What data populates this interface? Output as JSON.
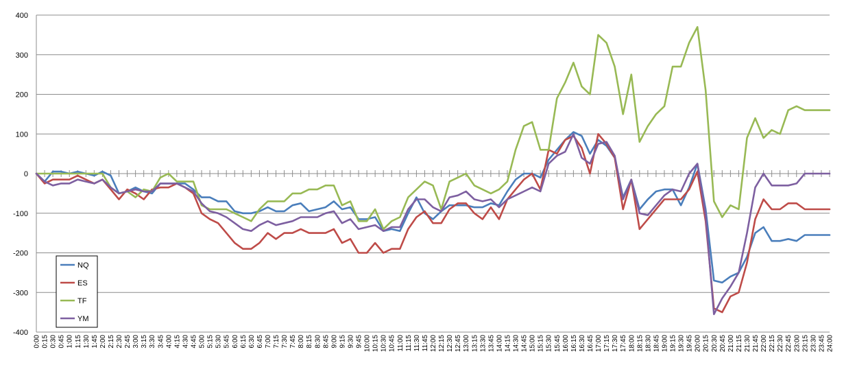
{
  "chart_data": {
    "type": "line",
    "title": "",
    "xlabel": "",
    "ylabel": "",
    "ylim": [
      -400,
      400
    ],
    "yticks": [
      -400,
      -300,
      -200,
      -100,
      0,
      100,
      200,
      300,
      400
    ],
    "grid": true,
    "legend_position": "bottom-left",
    "x": [
      "0:00",
      "0:15",
      "0:30",
      "0:45",
      "1:00",
      "1:15",
      "1:30",
      "1:45",
      "2:00",
      "2:15",
      "2:30",
      "2:45",
      "3:00",
      "3:15",
      "3:30",
      "3:45",
      "4:00",
      "4:15",
      "4:30",
      "4:45",
      "5:00",
      "5:15",
      "5:30",
      "5:45",
      "6:00",
      "6:15",
      "6:30",
      "6:45",
      "7:00",
      "7:15",
      "7:30",
      "7:45",
      "8:00",
      "8:15",
      "8:30",
      "8:45",
      "9:00",
      "9:15",
      "9:30",
      "9:45",
      "10:00",
      "10:15",
      "10:30",
      "10:45",
      "11:00",
      "11:15",
      "11:30",
      "11:45",
      "12:00",
      "12:15",
      "12:30",
      "12:45",
      "13:00",
      "13:15",
      "13:30",
      "13:45",
      "14:00",
      "14:15",
      "14:30",
      "14:45",
      "15:00",
      "15:15",
      "15:30",
      "15:45",
      "16:00",
      "16:15",
      "16:30",
      "16:45",
      "17:00",
      "17:15",
      "17:30",
      "17:45",
      "18:00",
      "18:15",
      "18:30",
      "18:45",
      "19:00",
      "19:15",
      "19:30",
      "19:45",
      "20:00",
      "20:15",
      "20:30",
      "20:45",
      "21:00",
      "21:15",
      "21:30",
      "21:45",
      "22:00",
      "22:15",
      "22:30",
      "22:45",
      "23:00",
      "23:15",
      "23:30",
      "23:45",
      "24:00"
    ],
    "series": [
      {
        "name": "NQ",
        "color": "#4A7EBB",
        "values": [
          0,
          -20,
          5,
          5,
          0,
          5,
          0,
          -5,
          5,
          -5,
          -50,
          -45,
          -35,
          -45,
          -50,
          -25,
          -25,
          -25,
          -25,
          -40,
          -60,
          -60,
          -70,
          -70,
          -95,
          -100,
          -100,
          -95,
          -85,
          -95,
          -95,
          -80,
          -75,
          -95,
          -90,
          -85,
          -70,
          -90,
          -85,
          -115,
          -115,
          -110,
          -145,
          -140,
          -145,
          -100,
          -60,
          -100,
          -115,
          -95,
          -80,
          -80,
          -80,
          -85,
          -85,
          -75,
          -80,
          -45,
          -15,
          0,
          0,
          -10,
          35,
          60,
          85,
          105,
          95,
          50,
          85,
          70,
          40,
          -60,
          -15,
          -90,
          -65,
          -45,
          -40,
          -40,
          -80,
          -35,
          25,
          -90,
          -270,
          -275,
          -260,
          -250,
          -210,
          -150,
          -135,
          -170,
          -170,
          -165,
          -170,
          -155,
          -155,
          -155,
          -155
        ]
      },
      {
        "name": "ES",
        "color": "#BE4B48",
        "values": [
          0,
          -25,
          -15,
          -15,
          -15,
          -5,
          -15,
          -25,
          -15,
          -40,
          -65,
          -40,
          -50,
          -65,
          -40,
          -35,
          -35,
          -25,
          -35,
          -50,
          -100,
          -115,
          -125,
          -150,
          -175,
          -190,
          -190,
          -175,
          -150,
          -165,
          -150,
          -150,
          -140,
          -150,
          -150,
          -150,
          -140,
          -175,
          -165,
          -200,
          -200,
          -175,
          -200,
          -190,
          -190,
          -140,
          -110,
          -95,
          -125,
          -125,
          -90,
          -75,
          -75,
          -100,
          -115,
          -85,
          -115,
          -65,
          -40,
          -15,
          0,
          -40,
          60,
          50,
          85,
          95,
          65,
          0,
          100,
          75,
          40,
          -90,
          -15,
          -140,
          -115,
          -90,
          -65,
          -65,
          -65,
          -40,
          5,
          -120,
          -340,
          -350,
          -310,
          -300,
          -225,
          -115,
          -65,
          -90,
          -90,
          -75,
          -75,
          -90,
          -90,
          -90,
          -90
        ]
      },
      {
        "name": "TF",
        "color": "#98B954",
        "values": [
          0,
          0,
          0,
          0,
          0,
          0,
          0,
          0,
          0,
          -35,
          -50,
          -45,
          -60,
          -40,
          -45,
          -10,
          0,
          -20,
          -20,
          -20,
          -80,
          -90,
          -90,
          -90,
          -100,
          -110,
          -120,
          -90,
          -70,
          -70,
          -70,
          -50,
          -50,
          -40,
          -40,
          -30,
          -30,
          -80,
          -70,
          -120,
          -120,
          -90,
          -140,
          -120,
          -110,
          -60,
          -40,
          -20,
          -30,
          -90,
          -20,
          -10,
          0,
          -30,
          -40,
          -50,
          -40,
          -20,
          60,
          120,
          130,
          60,
          60,
          190,
          230,
          280,
          220,
          200,
          350,
          330,
          270,
          150,
          250,
          80,
          120,
          150,
          170,
          270,
          270,
          330,
          370,
          210,
          -70,
          -110,
          -80,
          -90,
          90,
          140,
          90,
          110,
          100,
          160,
          170,
          160,
          160,
          160,
          160
        ]
      },
      {
        "name": "YM",
        "color": "#7D5FA0",
        "values": [
          0,
          -20,
          -30,
          -25,
          -25,
          -15,
          -20,
          -25,
          -15,
          -35,
          -50,
          -45,
          -40,
          -45,
          -45,
          -25,
          -25,
          -25,
          -35,
          -45,
          -75,
          -95,
          -100,
          -110,
          -125,
          -140,
          -145,
          -130,
          -120,
          -130,
          -125,
          -120,
          -110,
          -110,
          -110,
          -100,
          -95,
          -125,
          -115,
          -140,
          -135,
          -130,
          -145,
          -135,
          -135,
          -90,
          -65,
          -65,
          -85,
          -95,
          -60,
          -55,
          -45,
          -65,
          -70,
          -65,
          -85,
          -65,
          -55,
          -45,
          -35,
          -45,
          25,
          45,
          55,
          100,
          40,
          25,
          75,
          80,
          45,
          -65,
          -15,
          -100,
          -105,
          -80,
          -55,
          -40,
          -45,
          0,
          25,
          -105,
          -355,
          -315,
          -285,
          -250,
          -150,
          -35,
          0,
          -30,
          -30,
          -30,
          -25,
          0,
          0,
          0,
          0
        ]
      }
    ]
  }
}
